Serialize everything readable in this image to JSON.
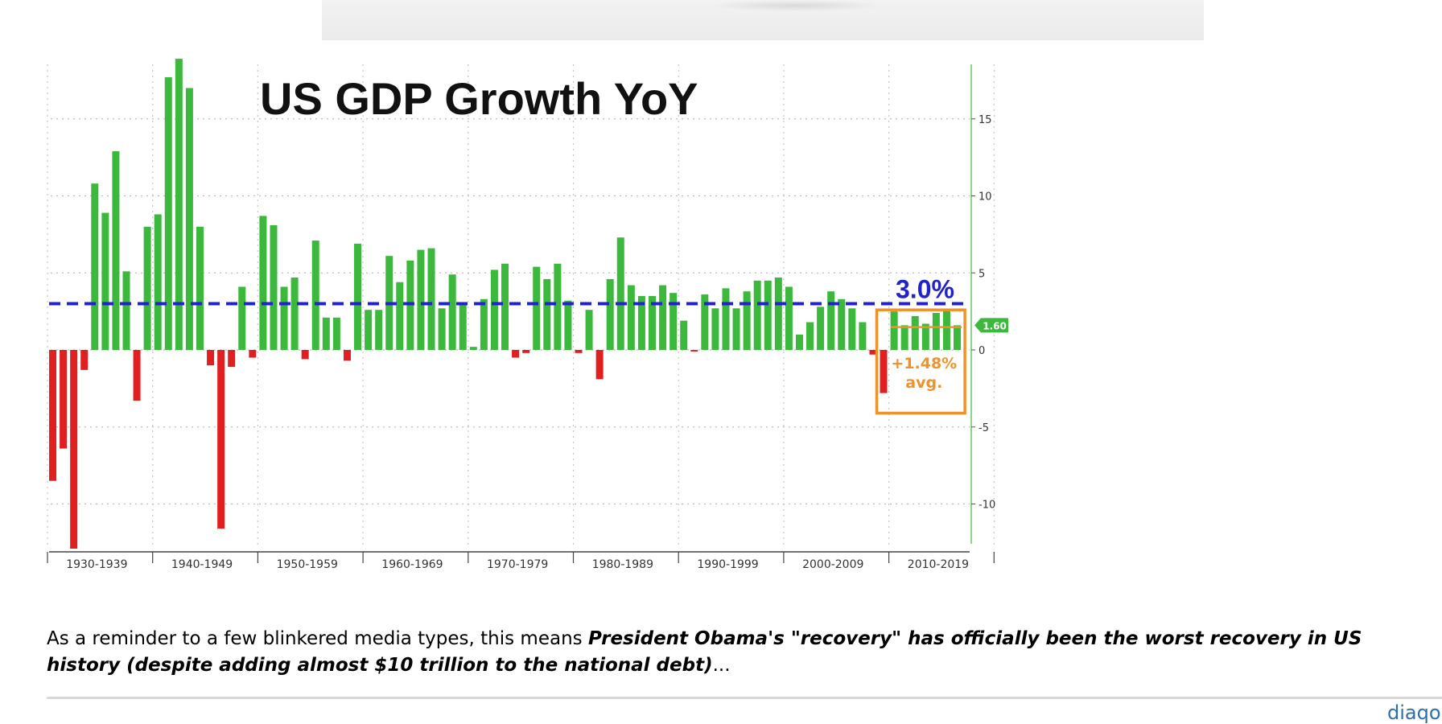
{
  "banner": {
    "label": ""
  },
  "chart_data": {
    "type": "bar",
    "title": "US GDP Growth YoY",
    "xlabel": "",
    "ylabel": "",
    "ylim": [
      -13,
      18
    ],
    "yticks": [
      15,
      10,
      5,
      0,
      -5,
      -10
    ],
    "ytick_labels": [
      "15",
      "10",
      "5",
      "0",
      "-5",
      "-10"
    ],
    "grid": true,
    "decade_labels": [
      "1930-1939",
      "1940-1949",
      "1950-1959",
      "1960-1969",
      "1970-1979",
      "1980-1989",
      "1990-1999",
      "2000-2009",
      "2010-2019"
    ],
    "start_year": 1930,
    "years": [
      1930,
      1931,
      1932,
      1933,
      1934,
      1935,
      1936,
      1937,
      1938,
      1939,
      1940,
      1941,
      1942,
      1943,
      1944,
      1945,
      1946,
      1947,
      1948,
      1949,
      1950,
      1951,
      1952,
      1953,
      1954,
      1955,
      1956,
      1957,
      1958,
      1959,
      1960,
      1961,
      1962,
      1963,
      1964,
      1965,
      1966,
      1967,
      1968,
      1969,
      1970,
      1971,
      1972,
      1973,
      1974,
      1975,
      1976,
      1977,
      1978,
      1979,
      1980,
      1981,
      1982,
      1983,
      1984,
      1985,
      1986,
      1987,
      1988,
      1989,
      1990,
      1991,
      1992,
      1993,
      1994,
      1995,
      1996,
      1997,
      1998,
      1999,
      2000,
      2001,
      2002,
      2003,
      2004,
      2005,
      2006,
      2007,
      2008,
      2009,
      2010,
      2011,
      2012,
      2013,
      2014,
      2015,
      2016
    ],
    "values": [
      -8.5,
      -6.4,
      -12.9,
      -1.3,
      10.8,
      8.9,
      12.9,
      5.1,
      -3.3,
      8.0,
      8.8,
      17.7,
      18.9,
      17.0,
      8.0,
      -1.0,
      -11.6,
      -1.1,
      4.1,
      -0.5,
      8.7,
      8.1,
      4.1,
      4.7,
      -0.6,
      7.1,
      2.1,
      2.1,
      -0.7,
      6.9,
      2.6,
      2.6,
      6.1,
      4.4,
      5.8,
      6.5,
      6.6,
      2.7,
      4.9,
      3.1,
      0.2,
      3.3,
      5.2,
      5.6,
      -0.5,
      -0.2,
      5.4,
      4.6,
      5.6,
      3.2,
      -0.2,
      2.6,
      -1.9,
      4.6,
      7.3,
      4.2,
      3.5,
      3.5,
      4.2,
      3.7,
      1.9,
      -0.1,
      3.6,
      2.7,
      4.0,
      2.7,
      3.8,
      4.5,
      4.5,
      4.7,
      4.1,
      1.0,
      1.8,
      2.8,
      3.8,
      3.3,
      2.7,
      1.8,
      -0.3,
      -2.8,
      2.5,
      1.6,
      2.2,
      1.7,
      2.4,
      2.6,
      1.6
    ],
    "positive_color": "#3cb83c",
    "negative_color": "#e02020",
    "reference_line": {
      "value": 3.0,
      "label": "3.0%",
      "color": "#2222cc"
    },
    "highlight": {
      "from_year": 2009,
      "to_year": 2016,
      "average": 1.48,
      "label_line1": "+1.48%",
      "label_line2": "avg.",
      "color": "#f0922a"
    },
    "last_value": {
      "value": 1.6,
      "label": "1.60",
      "color": "#3cb83c"
    }
  },
  "caption": {
    "lead": "As a reminder to a few blinkered media types, this means ",
    "emphasis": "President Obama's \"recovery\" has officially been the worst recovery in US history (despite adding almost $10 trillion to the national debt)",
    "tail": "..."
  },
  "footer": {
    "brand_partial": "diaqo"
  }
}
